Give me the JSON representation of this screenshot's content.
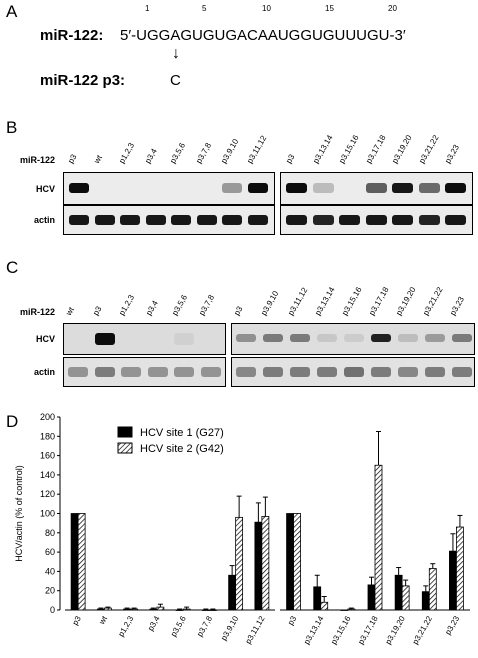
{
  "panelA": {
    "letter": "A",
    "positions": [
      "1",
      "5",
      "10",
      "15",
      "20"
    ],
    "mir_label": "miR-122:",
    "sequence": "5′-UGGAGUGUGACAAUGGUGUUUGU-3′",
    "arrow": "↓",
    "mutant_label": "miR-122 p3:",
    "mutant_base": "C"
  },
  "panelB": {
    "letter": "B",
    "row_label": "miR-122",
    "row_hcv": "HCV",
    "row_actin": "actin",
    "left_lanes": [
      "p3",
      "wt",
      "p1,2,3",
      "p3,4",
      "p3,5,6",
      "p3,7,8",
      "p3,9,10",
      "p3,11,12"
    ],
    "right_lanes": [
      "p3",
      "p3,13,14",
      "p3,15,16",
      "p3,17,18",
      "p3,19,20",
      "p3,21,22",
      "p3,23"
    ]
  },
  "panelC": {
    "letter": "C",
    "row_label": "miR-122",
    "row_hcv": "HCV",
    "row_actin": "actin",
    "left_lanes": [
      "wt",
      "p3",
      "p1,2,3",
      "p3,4",
      "p3,5,6",
      "p3,7,8"
    ],
    "right_lanes": [
      "p3",
      "p3,9,10",
      "p3,11,12",
      "p3,13,14",
      "p3,15,16",
      "p3,17,18",
      "p3,19,20",
      "p3,21,22",
      "p3,23"
    ]
  },
  "panelD": {
    "letter": "D"
  },
  "chart_data": {
    "type": "bar",
    "ylabel": "HCV/actin (% of control)",
    "ylim": [
      0,
      200
    ],
    "yticks": [
      0,
      20,
      40,
      60,
      80,
      100,
      120,
      140,
      160,
      180,
      200
    ],
    "groups": [
      [
        "p3",
        "wt",
        "p1,2,3",
        "p3,4",
        "p3,5,6",
        "p3,7,8",
        "p3,9,10",
        "p3,11,12"
      ],
      [
        "p3",
        "p3,13,14",
        "p3,15,16",
        "p3,17,18",
        "p3,19,20",
        "p3,21,22",
        "p3,23"
      ]
    ],
    "categories": [
      "p3",
      "wt",
      "p1,2,3",
      "p3,4",
      "p3,5,6",
      "p3,7,8",
      "p3,9,10",
      "p3,11,12",
      "p3",
      "p3,13,14",
      "p3,15,16",
      "p3,17,18",
      "p3,19,20",
      "p3,21,22",
      "p3,23"
    ],
    "series": [
      {
        "name": "HCV site 1 (G27)",
        "color": "#000000",
        "pattern": "solid",
        "values": [
          100,
          1,
          1,
          1,
          0,
          0,
          36,
          91,
          100,
          24,
          0,
          26,
          36,
          19,
          61
        ],
        "errors": [
          0,
          1,
          1,
          1,
          1,
          1,
          10,
          20,
          0,
          12,
          0,
          8,
          8,
          6,
          18
        ]
      },
      {
        "name": "HCV site 2 (G42)",
        "color": "#ffffff",
        "pattern": "hatched",
        "values": [
          100,
          2,
          1,
          3,
          1,
          0,
          96,
          97,
          100,
          8,
          1,
          150,
          25,
          43,
          86
        ],
        "errors": [
          0,
          1,
          1,
          3,
          2,
          1,
          22,
          20,
          0,
          6,
          1,
          35,
          6,
          5,
          12
        ]
      }
    ],
    "legend_position": "top-left"
  }
}
